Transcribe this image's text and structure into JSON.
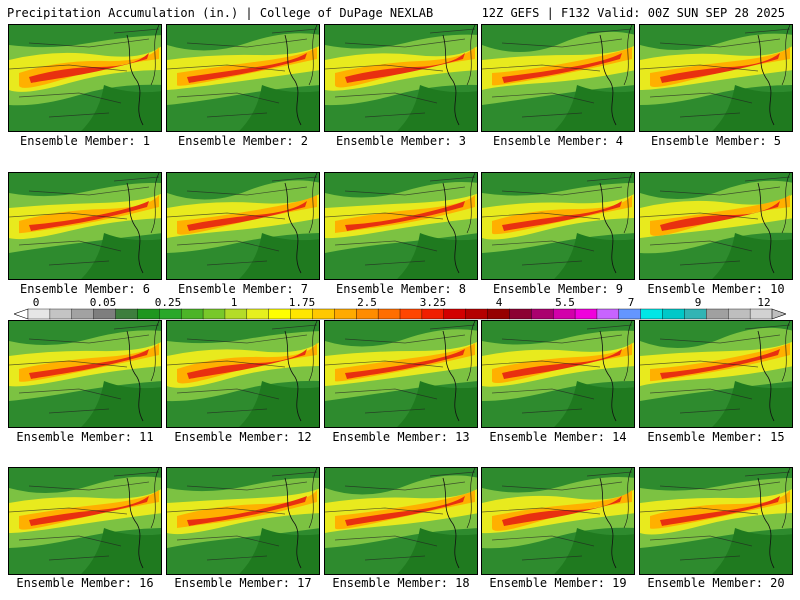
{
  "header": {
    "title": "Precipitation Accumulation (in.) | College of DuPage NEXLAB",
    "run_info": "12Z GEFS | F132 Valid: 00Z SUN SEP 28 2025"
  },
  "members": [
    {
      "label": "Ensemble Member: 1"
    },
    {
      "label": "Ensemble Member: 2"
    },
    {
      "label": "Ensemble Member: 3"
    },
    {
      "label": "Ensemble Member: 4"
    },
    {
      "label": "Ensemble Member: 5"
    },
    {
      "label": "Ensemble Member: 6"
    },
    {
      "label": "Ensemble Member: 7"
    },
    {
      "label": "Ensemble Member: 8"
    },
    {
      "label": "Ensemble Member: 9"
    },
    {
      "label": "Ensemble Member: 10"
    },
    {
      "label": "Ensemble Member: 11"
    },
    {
      "label": "Ensemble Member: 12"
    },
    {
      "label": "Ensemble Member: 13"
    },
    {
      "label": "Ensemble Member: 14"
    },
    {
      "label": "Ensemble Member: 15"
    },
    {
      "label": "Ensemble Member: 16"
    },
    {
      "label": "Ensemble Member: 17"
    },
    {
      "label": "Ensemble Member: 18"
    },
    {
      "label": "Ensemble Member: 19"
    },
    {
      "label": "Ensemble Member: 20"
    }
  ],
  "colorbar": {
    "tick_labels": [
      "0",
      "0.05",
      "0.25",
      "1",
      "1.75",
      "2.5",
      "3.25",
      "4",
      "5.5",
      "7",
      "9",
      "12"
    ],
    "colors": [
      "#e6e6e6",
      "#c4c4c4",
      "#a2a2a2",
      "#7e7e7e",
      "#3e7e3e",
      "#1e961e",
      "#2aa82a",
      "#4cb428",
      "#78c82a",
      "#b4dc28",
      "#e6f01e",
      "#ffff00",
      "#ffe600",
      "#ffc800",
      "#ffaa00",
      "#ff8c00",
      "#ff6e00",
      "#ff4600",
      "#f01e00",
      "#d20000",
      "#b40000",
      "#960000",
      "#8c0032",
      "#aa006e",
      "#d200aa",
      "#f000dc",
      "#c864ff",
      "#6496ff",
      "#00e6e6",
      "#00c8c8",
      "#32b4b4",
      "#a0a0a0",
      "#bebebe",
      "#d2d2d2"
    ]
  }
}
